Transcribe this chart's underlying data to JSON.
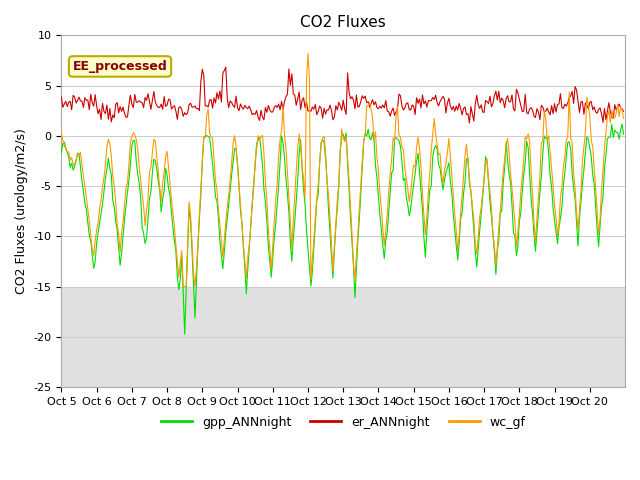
{
  "title": "CO2 Fluxes",
  "ylabel": "CO2 Fluxes (urology/m2/s)",
  "xlim": [
    0,
    384
  ],
  "ylim": [
    -25,
    10
  ],
  "yticks": [
    -25,
    -20,
    -15,
    -10,
    -5,
    0,
    5,
    10
  ],
  "xtick_labels": [
    "Oct 5",
    "Oct 6",
    "Oct 7",
    "Oct 8",
    "Oct 9",
    "Oct 10",
    "Oct 11",
    "Oct 12",
    "Oct 13",
    "Oct 14",
    "Oct 15",
    "Oct 16",
    "Oct 17",
    "Oct 18",
    "Oct 19",
    "Oct 20"
  ],
  "colors": {
    "gpp_ANNnight": "#00dd00",
    "er_ANNnight": "#cc0000",
    "wc_gf": "#ff9900"
  },
  "legend_label": "EE_processed",
  "legend_box_color": "#ffffcc",
  "legend_box_edge": "#bbaa00",
  "background_shading": "#e0e0e0",
  "grid_color": "#cccccc",
  "title_fontsize": 11,
  "axis_fontsize": 9,
  "tick_fontsize": 8
}
